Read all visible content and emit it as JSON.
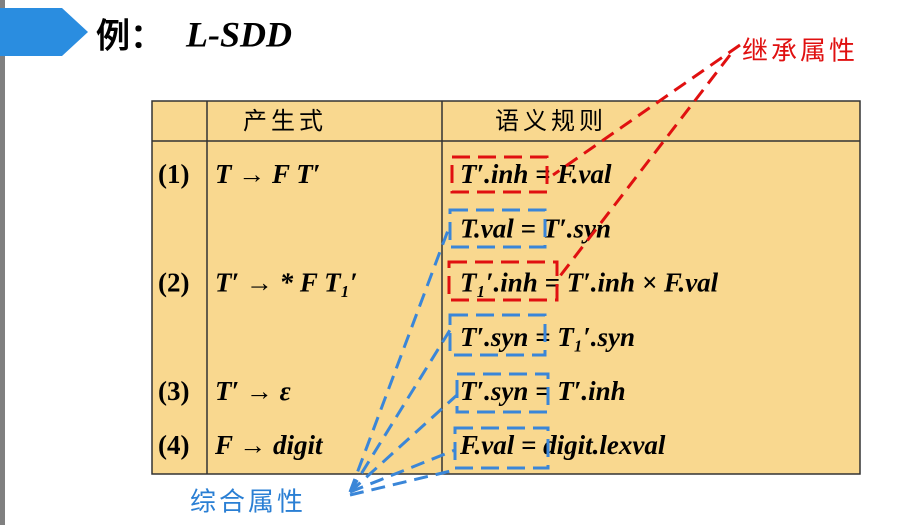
{
  "header": {
    "title": "例：",
    "subtitle": "L-SDD"
  },
  "table": {
    "columns": [
      "产生式",
      "语义规则"
    ],
    "rows": [
      {
        "number": "(1)",
        "production": "T → F T′",
        "rules": [
          "T′.inh = F.val",
          "T.val = T′.syn"
        ]
      },
      {
        "number": "(2)",
        "production": "T′ → * F T₁′",
        "rules": [
          "T₁′.inh = T′.inh × F.val",
          "T′.syn = T₁′.syn"
        ]
      },
      {
        "number": "(3)",
        "production": "T′ → ε",
        "rules": [
          "T′.syn = T′.inh"
        ]
      },
      {
        "number": "(4)",
        "production": "F → digit",
        "rules": [
          "F.val = digit.lexval"
        ]
      }
    ]
  },
  "annotations": {
    "inherited": "继承属性",
    "synthesized": "综合属性"
  }
}
